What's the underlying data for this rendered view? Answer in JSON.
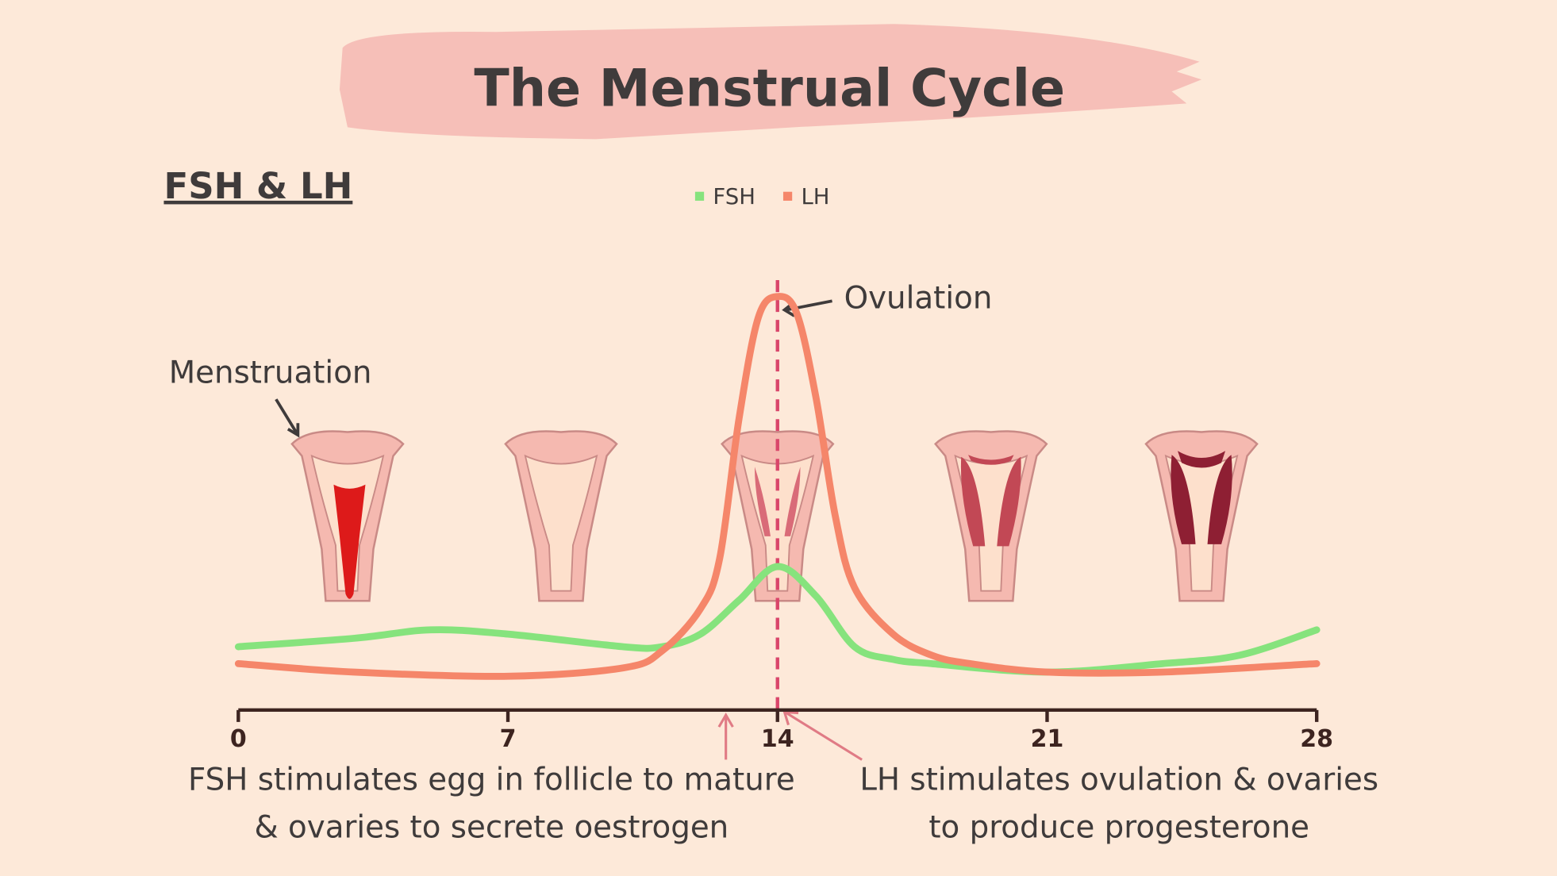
{
  "chart_data": {
    "type": "line",
    "title": "The Menstrual Cycle",
    "subtitle": "FSH & LH",
    "xlim": [
      0,
      28
    ],
    "xticks": [
      0,
      7,
      14,
      21,
      28
    ],
    "ylim": [
      0,
      100
    ],
    "legend": "top",
    "series": [
      {
        "name": "FSH",
        "color": "#86e37d",
        "x": [
          0,
          3,
          5,
          7,
          10,
          11,
          12,
          13,
          14,
          15,
          16,
          17,
          18,
          21,
          24,
          26,
          28
        ],
        "values": [
          15,
          17,
          19,
          18,
          15,
          15,
          18,
          26,
          34,
          27,
          15,
          12,
          11,
          9,
          11,
          13,
          19
        ]
      },
      {
        "name": "LH",
        "color": "#f5866a",
        "x": [
          0,
          3,
          7,
          10,
          11,
          12,
          12.5,
          13,
          13.5,
          14,
          14.5,
          15,
          15.5,
          16,
          17,
          18,
          19,
          21,
          24,
          28
        ],
        "values": [
          11,
          9,
          8,
          10,
          14,
          24,
          36,
          69,
          93,
          98,
          94,
          74,
          46,
          29,
          18,
          13,
          11,
          9,
          9,
          11
        ]
      }
    ],
    "annotations": [
      {
        "text": "Ovulation",
        "x": 14
      },
      {
        "text": "Menstruation"
      },
      {
        "lines": [
          "FSH stimulates egg in follicle to mature",
          "& ovaries to secrete oestrogen"
        ]
      },
      {
        "lines": [
          "LH stimulates ovulation & ovaries",
          "to produce progesterone"
        ]
      }
    ]
  }
}
